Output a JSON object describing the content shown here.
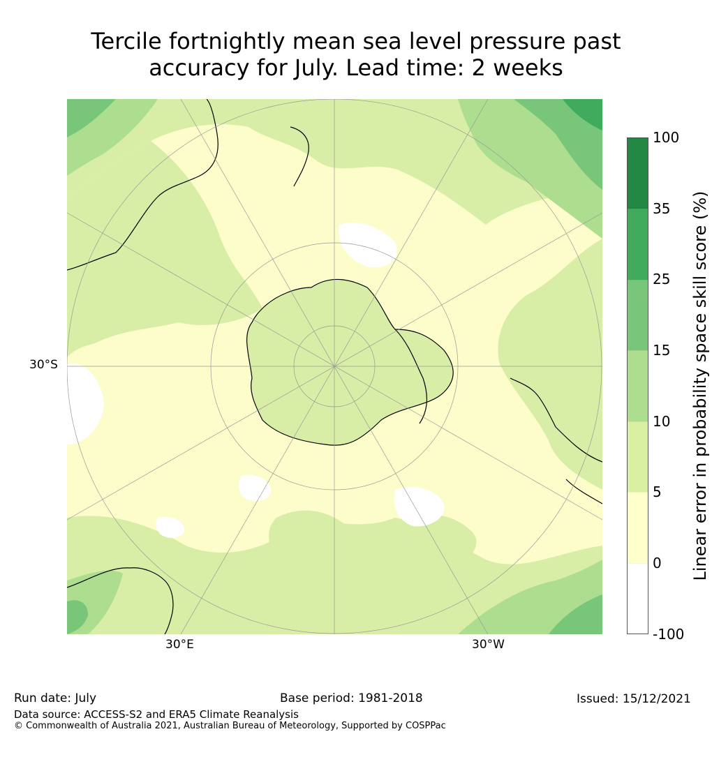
{
  "title": {
    "line1": "Tercile fortnightly mean sea level pressure past",
    "line2": "accuracy for July. Lead time: 2 weeks"
  },
  "map": {
    "projection": "south-polar-stereographic",
    "lat_labels": [
      "30°S"
    ],
    "lon_labels": [
      "30°E",
      "30°W"
    ],
    "colors": {
      "ocean_base": "#fcfdcb",
      "land_base": "#d8eda5",
      "antarctica": "#d8eda5",
      "coast": "#000000",
      "grid": "#999999"
    }
  },
  "colorbar": {
    "label": "Linear error in probability space skill score (%)",
    "ticks": [
      "100",
      "35",
      "25",
      "15",
      "10",
      "5",
      "0",
      "-100"
    ],
    "colors_top_to_bottom": [
      "#228844",
      "#41ab5d",
      "#78c679",
      "#addd8e",
      "#d9f0a3",
      "#ffffcc",
      "#ffffff"
    ]
  },
  "footer": {
    "run_date": "Run date: July",
    "base_period": "Base period: 1981-2018",
    "issued": "Issued: 15/12/2021",
    "data_source": "Data source: ACCESS-S2 and ERA5 Climate Reanalysis",
    "copyright": "© Commonwealth of Australia 2021, Australian Bureau of Meteorology, Supported by COSPPac"
  }
}
